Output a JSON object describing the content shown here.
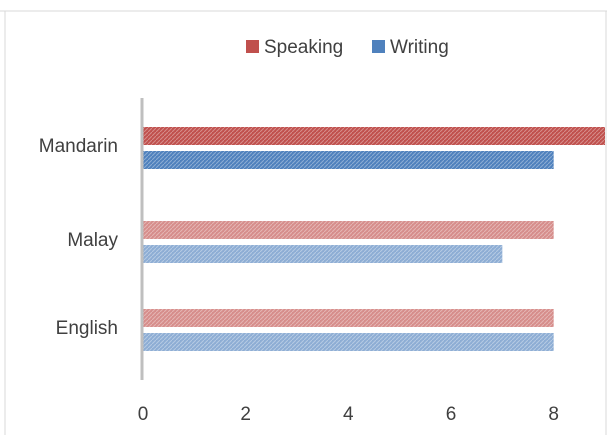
{
  "chart_data": {
    "type": "bar",
    "orientation": "horizontal",
    "categories": [
      "English",
      "Malay",
      "Mandarin"
    ],
    "series": [
      {
        "name": "Speaking",
        "values": [
          8,
          8,
          9
        ],
        "color": "#c0504d"
      },
      {
        "name": "Writing",
        "values": [
          8,
          7,
          8
        ],
        "color": "#4f81bd"
      }
    ],
    "highlight_category": "Mandarin",
    "xlim": [
      0,
      9
    ],
    "xticks": [
      "0",
      "2",
      "4",
      "6",
      "8"
    ],
    "xtick_values": [
      0,
      2,
      4,
      6,
      8
    ],
    "grid": false,
    "legend_position": "top"
  }
}
